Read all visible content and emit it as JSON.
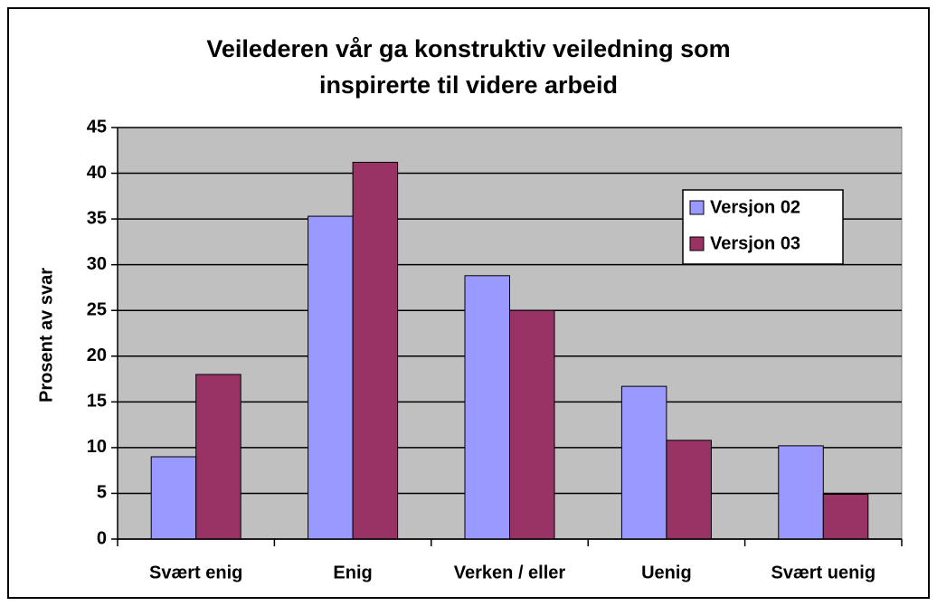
{
  "chart_data": {
    "type": "bar",
    "title": "Veilederen vår ga konstruktiv veiledning som inspirerte til videre arbeid",
    "y_label": "Prosent av svar",
    "categories": [
      "Svært enig",
      "Enig",
      "Verken / eller",
      "Uenig",
      "Svært uenig"
    ],
    "series": [
      {
        "name": "Versjon 02",
        "color": "#9999ff",
        "values": [
          9,
          35.3,
          28.8,
          16.7,
          10.2
        ]
      },
      {
        "name": "Versjon 03",
        "color": "#993366",
        "values": [
          18,
          41.2,
          25,
          10.8,
          4.9
        ]
      }
    ],
    "ylim": [
      0,
      45
    ],
    "yticks": [
      0,
      5,
      10,
      15,
      20,
      25,
      30,
      35,
      40,
      45
    ],
    "grid": true,
    "legend": "right"
  }
}
